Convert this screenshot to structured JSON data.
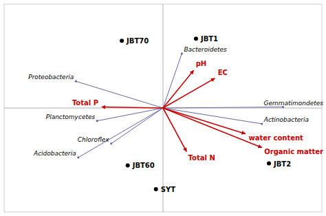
{
  "chart_data": {
    "type": "biplot",
    "xlim": [
      -1.35,
      1.35
    ],
    "ylim": [
      -1.05,
      1.05
    ],
    "xticks": [],
    "yticks": [],
    "tick_labels": false,
    "grid": false,
    "series": [
      {
        "type": "vector",
        "marker": "dot",
        "color": "#6666aa",
        "labels": [
          "Bacteroidetes",
          "Proteobacteria",
          "Gemmatimondetes",
          "Actinobacteria",
          "Planctomycetes",
          "Chloroflex",
          "Acidobacteria"
        ],
        "x": [
          0.16,
          -0.74,
          1.02,
          0.84,
          -0.56,
          -0.44,
          -0.72
        ],
        "values": [
          0.55,
          0.27,
          0.01,
          -0.16,
          -0.13,
          -0.36,
          -0.5
        ]
      },
      {
        "type": "vector",
        "marker": "arrow",
        "color": "#cc0000",
        "labels": [
          "pH",
          "EC",
          "Total P",
          "Total N",
          "water content",
          "Organic matter"
        ],
        "x": [
          0.26,
          0.44,
          -0.52,
          0.2,
          0.7,
          0.84
        ],
        "values": [
          0.38,
          0.3,
          0.01,
          -0.44,
          -0.26,
          -0.4
        ]
      },
      {
        "type": "scatter",
        "marker": "circle",
        "color": "#000000",
        "labels": [
          "JBT70",
          "JBT1",
          "JBT60",
          "JBT2",
          "SYT"
        ],
        "x": [
          -0.35,
          0.28,
          -0.3,
          0.9,
          -0.06
        ],
        "values": [
          0.68,
          0.7,
          -0.58,
          -0.56,
          -0.82
        ]
      }
    ]
  }
}
